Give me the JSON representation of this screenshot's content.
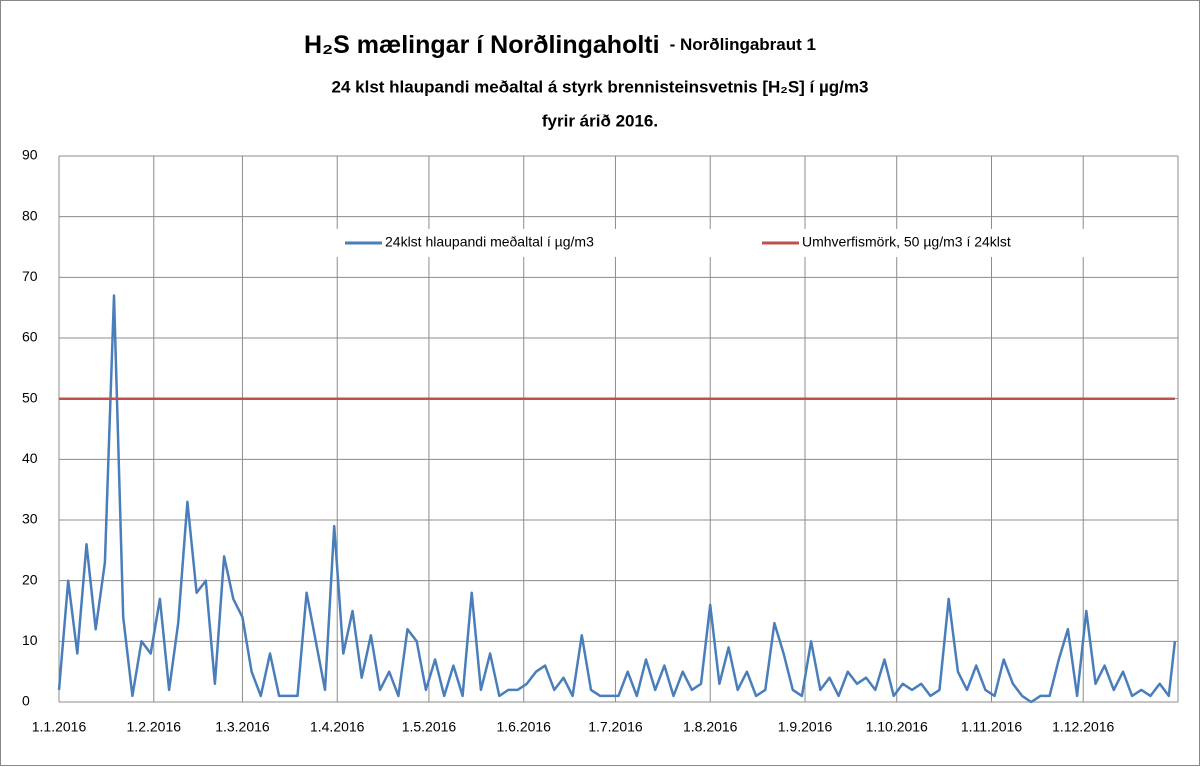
{
  "chart_data": {
    "type": "line",
    "title": "H₂S mælingar í Norðlingaholti",
    "subtitle": [
      "- Norðlingabraut 1",
      "24 klst hlaupandi meðaltal á styrk brennisteinsvetnis [H₂S] í µg/m3",
      "fyrir árið 2016."
    ],
    "xlim": [
      "1.1.2016",
      "31.12.2016"
    ],
    "xticks": [
      "1.1.2016",
      "1.2.2016",
      "1.3.2016",
      "1.4.2016",
      "1.5.2016",
      "1.6.2016",
      "1.7.2016",
      "1.8.2016",
      "1.9.2016",
      "1.10.2016",
      "1.11.2016",
      "1.12.2016"
    ],
    "ylim": [
      0,
      90
    ],
    "yticks": [
      0,
      10,
      20,
      30,
      40,
      50,
      60,
      70,
      80,
      90
    ],
    "grid": true,
    "legend": "top",
    "series": [
      {
        "name": "24klst hlaupandi meðaltal í µg/m3",
        "color": "#4a7ebb",
        "x": [
          "1.1.2016",
          "4.1.2016",
          "7.1.2016",
          "10.1.2016",
          "13.1.2016",
          "16.1.2016",
          "19.1.2016",
          "22.1.2016",
          "25.1.2016",
          "28.1.2016",
          "31.1.2016",
          "3.2.2016",
          "6.2.2016",
          "9.2.2016",
          "12.2.2016",
          "15.2.2016",
          "18.2.2016",
          "21.2.2016",
          "24.2.2016",
          "27.2.2016",
          "1.3.2016",
          "4.3.2016",
          "7.3.2016",
          "10.3.2016",
          "13.3.2016",
          "16.3.2016",
          "19.3.2016",
          "22.3.2016",
          "25.3.2016",
          "28.3.2016",
          "31.3.2016",
          "3.4.2016",
          "6.4.2016",
          "9.4.2016",
          "12.4.2016",
          "15.4.2016",
          "18.4.2016",
          "21.4.2016",
          "24.4.2016",
          "27.4.2016",
          "30.4.2016",
          "3.5.2016",
          "6.5.2016",
          "9.5.2016",
          "12.5.2016",
          "15.5.2016",
          "18.5.2016",
          "21.5.2016",
          "24.5.2016",
          "27.5.2016",
          "30.5.2016",
          "2.6.2016",
          "5.6.2016",
          "8.6.2016",
          "11.6.2016",
          "14.6.2016",
          "17.6.2016",
          "20.6.2016",
          "23.6.2016",
          "26.6.2016",
          "29.6.2016",
          "2.7.2016",
          "5.7.2016",
          "8.7.2016",
          "11.7.2016",
          "14.7.2016",
          "17.7.2016",
          "20.7.2016",
          "23.7.2016",
          "26.7.2016",
          "29.7.2016",
          "1.8.2016",
          "4.8.2016",
          "7.8.2016",
          "10.8.2016",
          "13.8.2016",
          "16.8.2016",
          "19.8.2016",
          "22.8.2016",
          "25.8.2016",
          "28.8.2016",
          "31.8.2016",
          "3.9.2016",
          "6.9.2016",
          "9.9.2016",
          "12.9.2016",
          "15.9.2016",
          "18.9.2016",
          "21.9.2016",
          "24.9.2016",
          "27.9.2016",
          "30.9.2016",
          "3.10.2016",
          "6.10.2016",
          "9.10.2016",
          "12.10.2016",
          "15.10.2016",
          "18.10.2016",
          "21.10.2016",
          "24.10.2016",
          "27.10.2016",
          "30.10.2016",
          "2.11.2016",
          "5.11.2016",
          "8.11.2016",
          "11.11.2016",
          "14.11.2016",
          "17.11.2016",
          "20.11.2016",
          "23.11.2016",
          "26.11.2016",
          "29.11.2016",
          "2.12.2016",
          "5.12.2016",
          "8.12.2016",
          "11.12.2016",
          "14.12.2016",
          "17.12.2016",
          "20.12.2016",
          "23.12.2016",
          "26.12.2016",
          "29.12.2016",
          "31.12.2016"
        ],
        "values": [
          2,
          20,
          8,
          26,
          12,
          23,
          67,
          14,
          1,
          10,
          8,
          17,
          2,
          13,
          33,
          18,
          20,
          3,
          24,
          17,
          14,
          5,
          1,
          8,
          1,
          1,
          1,
          18,
          10,
          2,
          29,
          8,
          15,
          4,
          11,
          2,
          5,
          1,
          12,
          10,
          2,
          7,
          1,
          6,
          1,
          18,
          2,
          8,
          1,
          2,
          2,
          3,
          5,
          6,
          2,
          4,
          1,
          11,
          2,
          1,
          1,
          1,
          5,
          1,
          7,
          2,
          6,
          1,
          5,
          2,
          3,
          16,
          3,
          9,
          2,
          5,
          1,
          2,
          13,
          8,
          2,
          1,
          10,
          2,
          4,
          1,
          5,
          3,
          4,
          2,
          7,
          1,
          3,
          2,
          3,
          1,
          2,
          17,
          5,
          2,
          6,
          2,
          1,
          7,
          3,
          1,
          0,
          1,
          1,
          7,
          12,
          1,
          15,
          3,
          6,
          2,
          5,
          1,
          2,
          1,
          3,
          1,
          10
        ]
      },
      {
        "name": "Umhverfismörk, 50 µg/m3 í 24klst",
        "color": "#c0504d",
        "x": [
          "1.1.2016",
          "31.12.2016"
        ],
        "values": [
          50,
          50
        ]
      }
    ]
  }
}
